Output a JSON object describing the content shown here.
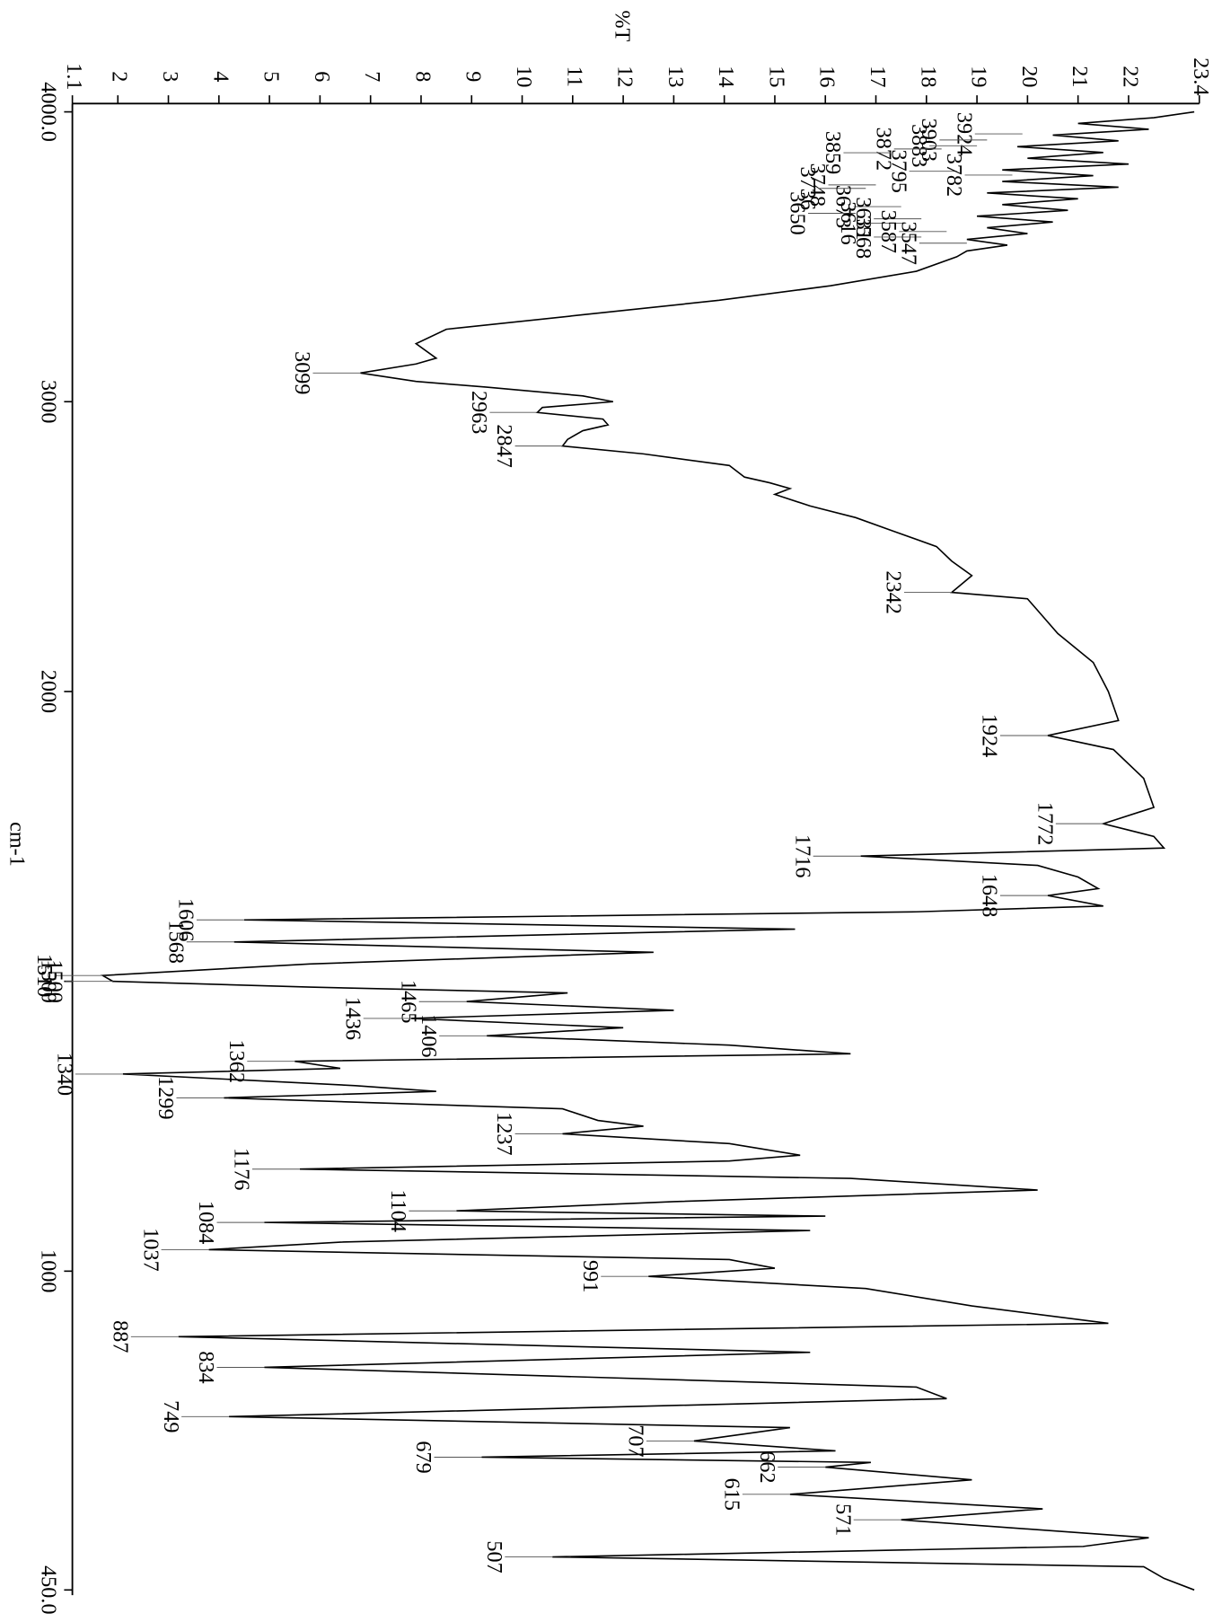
{
  "chart_data": {
    "type": "line",
    "title": "%T",
    "x_label": "cm-1",
    "xlim": [
      4000,
      450
    ],
    "xticks": [
      {
        "value": 4000,
        "label": "4000.0"
      },
      3000,
      2000,
      1500,
      1000,
      {
        "value": 450,
        "label": "450.0"
      }
    ],
    "x_scale_break": 2000,
    "x_scale_factor": 2,
    "ylim": [
      1.1,
      23.4
    ],
    "yticks": [
      1.1,
      2,
      3,
      4,
      5,
      6,
      7,
      8,
      9,
      10,
      11,
      12,
      13,
      14,
      15,
      16,
      17,
      18,
      19,
      20,
      21,
      22,
      23.4
    ],
    "series": [
      {
        "color": "#000000",
        "x": [
          4000,
          3980,
          3960,
          3940,
          3920,
          3900,
          3880,
          3860,
          3840,
          3820,
          3800,
          3780,
          3760,
          3740,
          3720,
          3700,
          3680,
          3660,
          3640,
          3620,
          3600,
          3580,
          3560,
          3540,
          3520,
          3500,
          3450,
          3400,
          3350,
          3300,
          3250,
          3200,
          3150,
          3130,
          3099,
          3070,
          3050,
          3020,
          3000,
          2980,
          2963,
          2940,
          2920,
          2900,
          2870,
          2847,
          2820,
          2780,
          2740,
          2720,
          2700,
          2680,
          2640,
          2600,
          2550,
          2500,
          2450,
          2400,
          2342,
          2320,
          2280,
          2200,
          2100,
          2000,
          1950,
          1924,
          1900,
          1850,
          1800,
          1772,
          1750,
          1730,
          1716,
          1700,
          1680,
          1660,
          1648,
          1630,
          1620,
          1606,
          1590,
          1568,
          1550,
          1530,
          1510,
          1500,
          1490,
          1480,
          1465,
          1450,
          1436,
          1420,
          1406,
          1390,
          1375,
          1362,
          1350,
          1340,
          1320,
          1310,
          1299,
          1280,
          1260,
          1250,
          1237,
          1220,
          1200,
          1190,
          1176,
          1160,
          1140,
          1120,
          1104,
          1095,
          1084,
          1070,
          1050,
          1037,
          1020,
          1005,
          991,
          970,
          940,
          910,
          887,
          860,
          834,
          800,
          780,
          749,
          730,
          707,
          690,
          679,
          670,
          662,
          640,
          615,
          590,
          571,
          540,
          525,
          507,
          490,
          470,
          450
        ],
        "values": [
          23.3,
          22.5,
          21.0,
          22.4,
          20.5,
          21.8,
          19.8,
          21.5,
          20.0,
          22.0,
          19.5,
          21.3,
          19.5,
          21.8,
          19.2,
          21.0,
          19.5,
          20.8,
          19.0,
          20.5,
          19.2,
          20.0,
          18.8,
          19.6,
          18.8,
          18.6,
          17.8,
          16.1,
          13.9,
          11.2,
          8.5,
          7.9,
          8.3,
          7.9,
          6.8,
          7.9,
          9.3,
          11.2,
          11.8,
          10.4,
          10.3,
          11.6,
          11.7,
          11.2,
          10.9,
          10.8,
          12.4,
          14.1,
          14.4,
          14.9,
          15.3,
          15.0,
          15.7,
          16.6,
          17.4,
          18.2,
          18.5,
          18.9,
          18.5,
          20.0,
          20.2,
          20.6,
          21.3,
          21.6,
          21.8,
          20.4,
          21.7,
          22.3,
          22.5,
          21.5,
          22.5,
          22.7,
          16.7,
          20.2,
          21.0,
          21.4,
          20.4,
          21.5,
          17.8,
          4.5,
          15.4,
          4.3,
          12.6,
          5.8,
          1.7,
          1.9,
          5.8,
          10.9,
          8.9,
          13.0,
          7.8,
          12.0,
          9.3,
          14.1,
          16.5,
          5.5,
          6.4,
          2.1,
          6.7,
          8.3,
          4.1,
          10.8,
          11.5,
          12.4,
          10.8,
          14.1,
          15.5,
          14.1,
          5.6,
          16.5,
          20.2,
          13.0,
          8.7,
          16.0,
          4.9,
          15.7,
          6.4,
          3.8,
          14.1,
          15.0,
          12.5,
          16.8,
          18.9,
          21.6,
          3.2,
          15.7,
          4.9,
          17.8,
          18.4,
          4.2,
          15.3,
          13.4,
          16.2,
          9.2,
          16.9,
          16.0,
          18.9,
          15.3,
          20.3,
          17.5,
          22.4,
          21.1,
          10.6,
          22.3,
          22.7,
          23.3
        ]
      }
    ],
    "peaks": {
      "x": [
        3924,
        3903,
        3883,
        3872,
        3859,
        3795,
        3782,
        3748,
        3736,
        3673,
        3650,
        3631,
        3616,
        3587,
        3568,
        3547,
        3099,
        2963,
        2847,
        2342,
        1924,
        1772,
        1716,
        1648,
        1606,
        1568,
        1510,
        1500,
        1465,
        1436,
        1406,
        1362,
        1340,
        1299,
        1237,
        1176,
        1104,
        1084,
        1037,
        991,
        887,
        834,
        749,
        707,
        679,
        662,
        615,
        571,
        507
      ],
      "values": [
        19.9,
        19.2,
        19.0,
        18.3,
        17.3,
        18.6,
        19.7,
        17.0,
        16.8,
        17.5,
        16.6,
        17.9,
        17.6,
        18.4,
        17.9,
        18.8,
        6.8,
        10.3,
        10.8,
        18.5,
        20.4,
        21.5,
        16.7,
        20.4,
        4.5,
        4.3,
        1.7,
        1.9,
        8.9,
        7.8,
        9.3,
        5.5,
        2.1,
        4.1,
        10.8,
        5.6,
        8.7,
        4.9,
        3.8,
        12.5,
        3.2,
        4.9,
        4.2,
        13.4,
        9.2,
        16.0,
        15.3,
        17.5,
        10.6
      ]
    }
  }
}
